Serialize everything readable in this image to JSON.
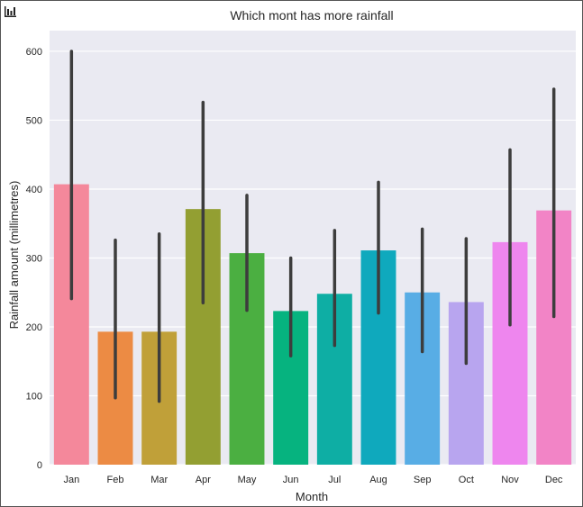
{
  "toolbar": {
    "icon": "bar-chart-icon"
  },
  "chart_data": {
    "type": "bar",
    "title": "Which mont has more rainfall",
    "xlabel": "Month",
    "ylabel": "Rainfall amount (millimetres)",
    "categories": [
      "Jan",
      "Feb",
      "Mar",
      "Apr",
      "May",
      "Jun",
      "Jul",
      "Aug",
      "Sep",
      "Oct",
      "Nov",
      "Dec"
    ],
    "values": [
      407,
      193,
      193,
      371,
      307,
      223,
      248,
      311,
      250,
      236,
      323,
      369
    ],
    "error_low": [
      241,
      97,
      92,
      235,
      224,
      158,
      173,
      220,
      164,
      147,
      203,
      215
    ],
    "error_high": [
      600,
      326,
      335,
      526,
      391,
      300,
      340,
      410,
      342,
      328,
      457,
      545
    ],
    "colors": [
      "#f4889b",
      "#ec8b44",
      "#c0a039",
      "#939f32",
      "#4baf41",
      "#06b37f",
      "#0eaea4",
      "#0fa9bd",
      "#58ade5",
      "#b8a5ef",
      "#ee86ee",
      "#f284c6"
    ],
    "ylim": [
      0,
      630
    ],
    "yticks": [
      0,
      100,
      200,
      300,
      400,
      500,
      600
    ],
    "grid": true,
    "legend": "none"
  }
}
